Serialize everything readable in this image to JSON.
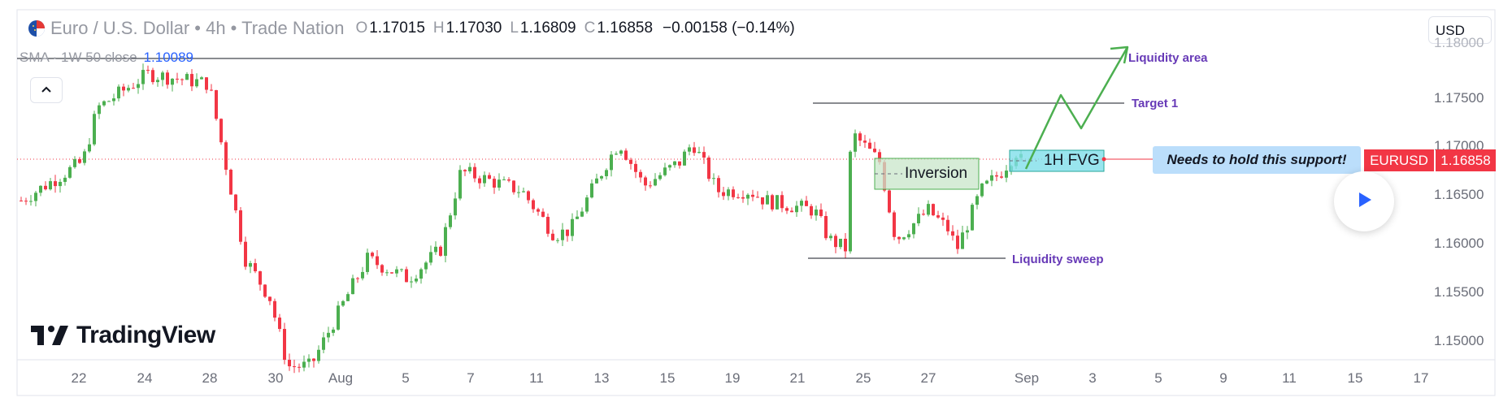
{
  "header": {
    "symbol_title": "Euro / U.S. Dollar • 4h • Trade Nation",
    "open_label": "O",
    "open_value": "1.17015",
    "high_label": "H",
    "high_value": "1.17030",
    "low_label": "L",
    "low_value": "1.16809",
    "close_label": "C",
    "close_value": "1.16858",
    "change": "−0.00158 (−0.14%)"
  },
  "indicator": {
    "label": "SMA · 1W 50 close",
    "value": "1.10089"
  },
  "currency_button": "USD",
  "price_axis": [
    "1.17500",
    "1.17000",
    "1.16500",
    "1.16000",
    "1.15500",
    "1.15000"
  ],
  "price_axis_top_partial": "1.18000",
  "time_axis": [
    "22",
    "24",
    "28",
    "30",
    "Aug",
    "5",
    "7",
    "11",
    "13",
    "15",
    "19",
    "21",
    "25",
    "27",
    "Sep",
    "3",
    "5",
    "9",
    "11",
    "15",
    "17"
  ],
  "symbol_tag": "EURUSD",
  "price_tag": "1.16858",
  "annotations": {
    "liquidity_area": "Liquidity area",
    "target_1": "Target 1",
    "liquidity_sweep": "Liquidity sweep",
    "inversion": "Inversion",
    "fvg": "1H FVG",
    "support_note": "Needs to hold this support!"
  },
  "logo_text": "TradingView",
  "colors": {
    "up": "#4caf50",
    "down": "#f23645",
    "annotation": "#673ab7",
    "fvg": "#80deea",
    "inversion": "#c8e6c9",
    "arrow": "#4caf50",
    "sma_text": "#2962ff"
  },
  "icons": {
    "collapse": "chevron-up-icon",
    "play": "play-icon",
    "flag": "eu-us-flag-icon"
  }
}
